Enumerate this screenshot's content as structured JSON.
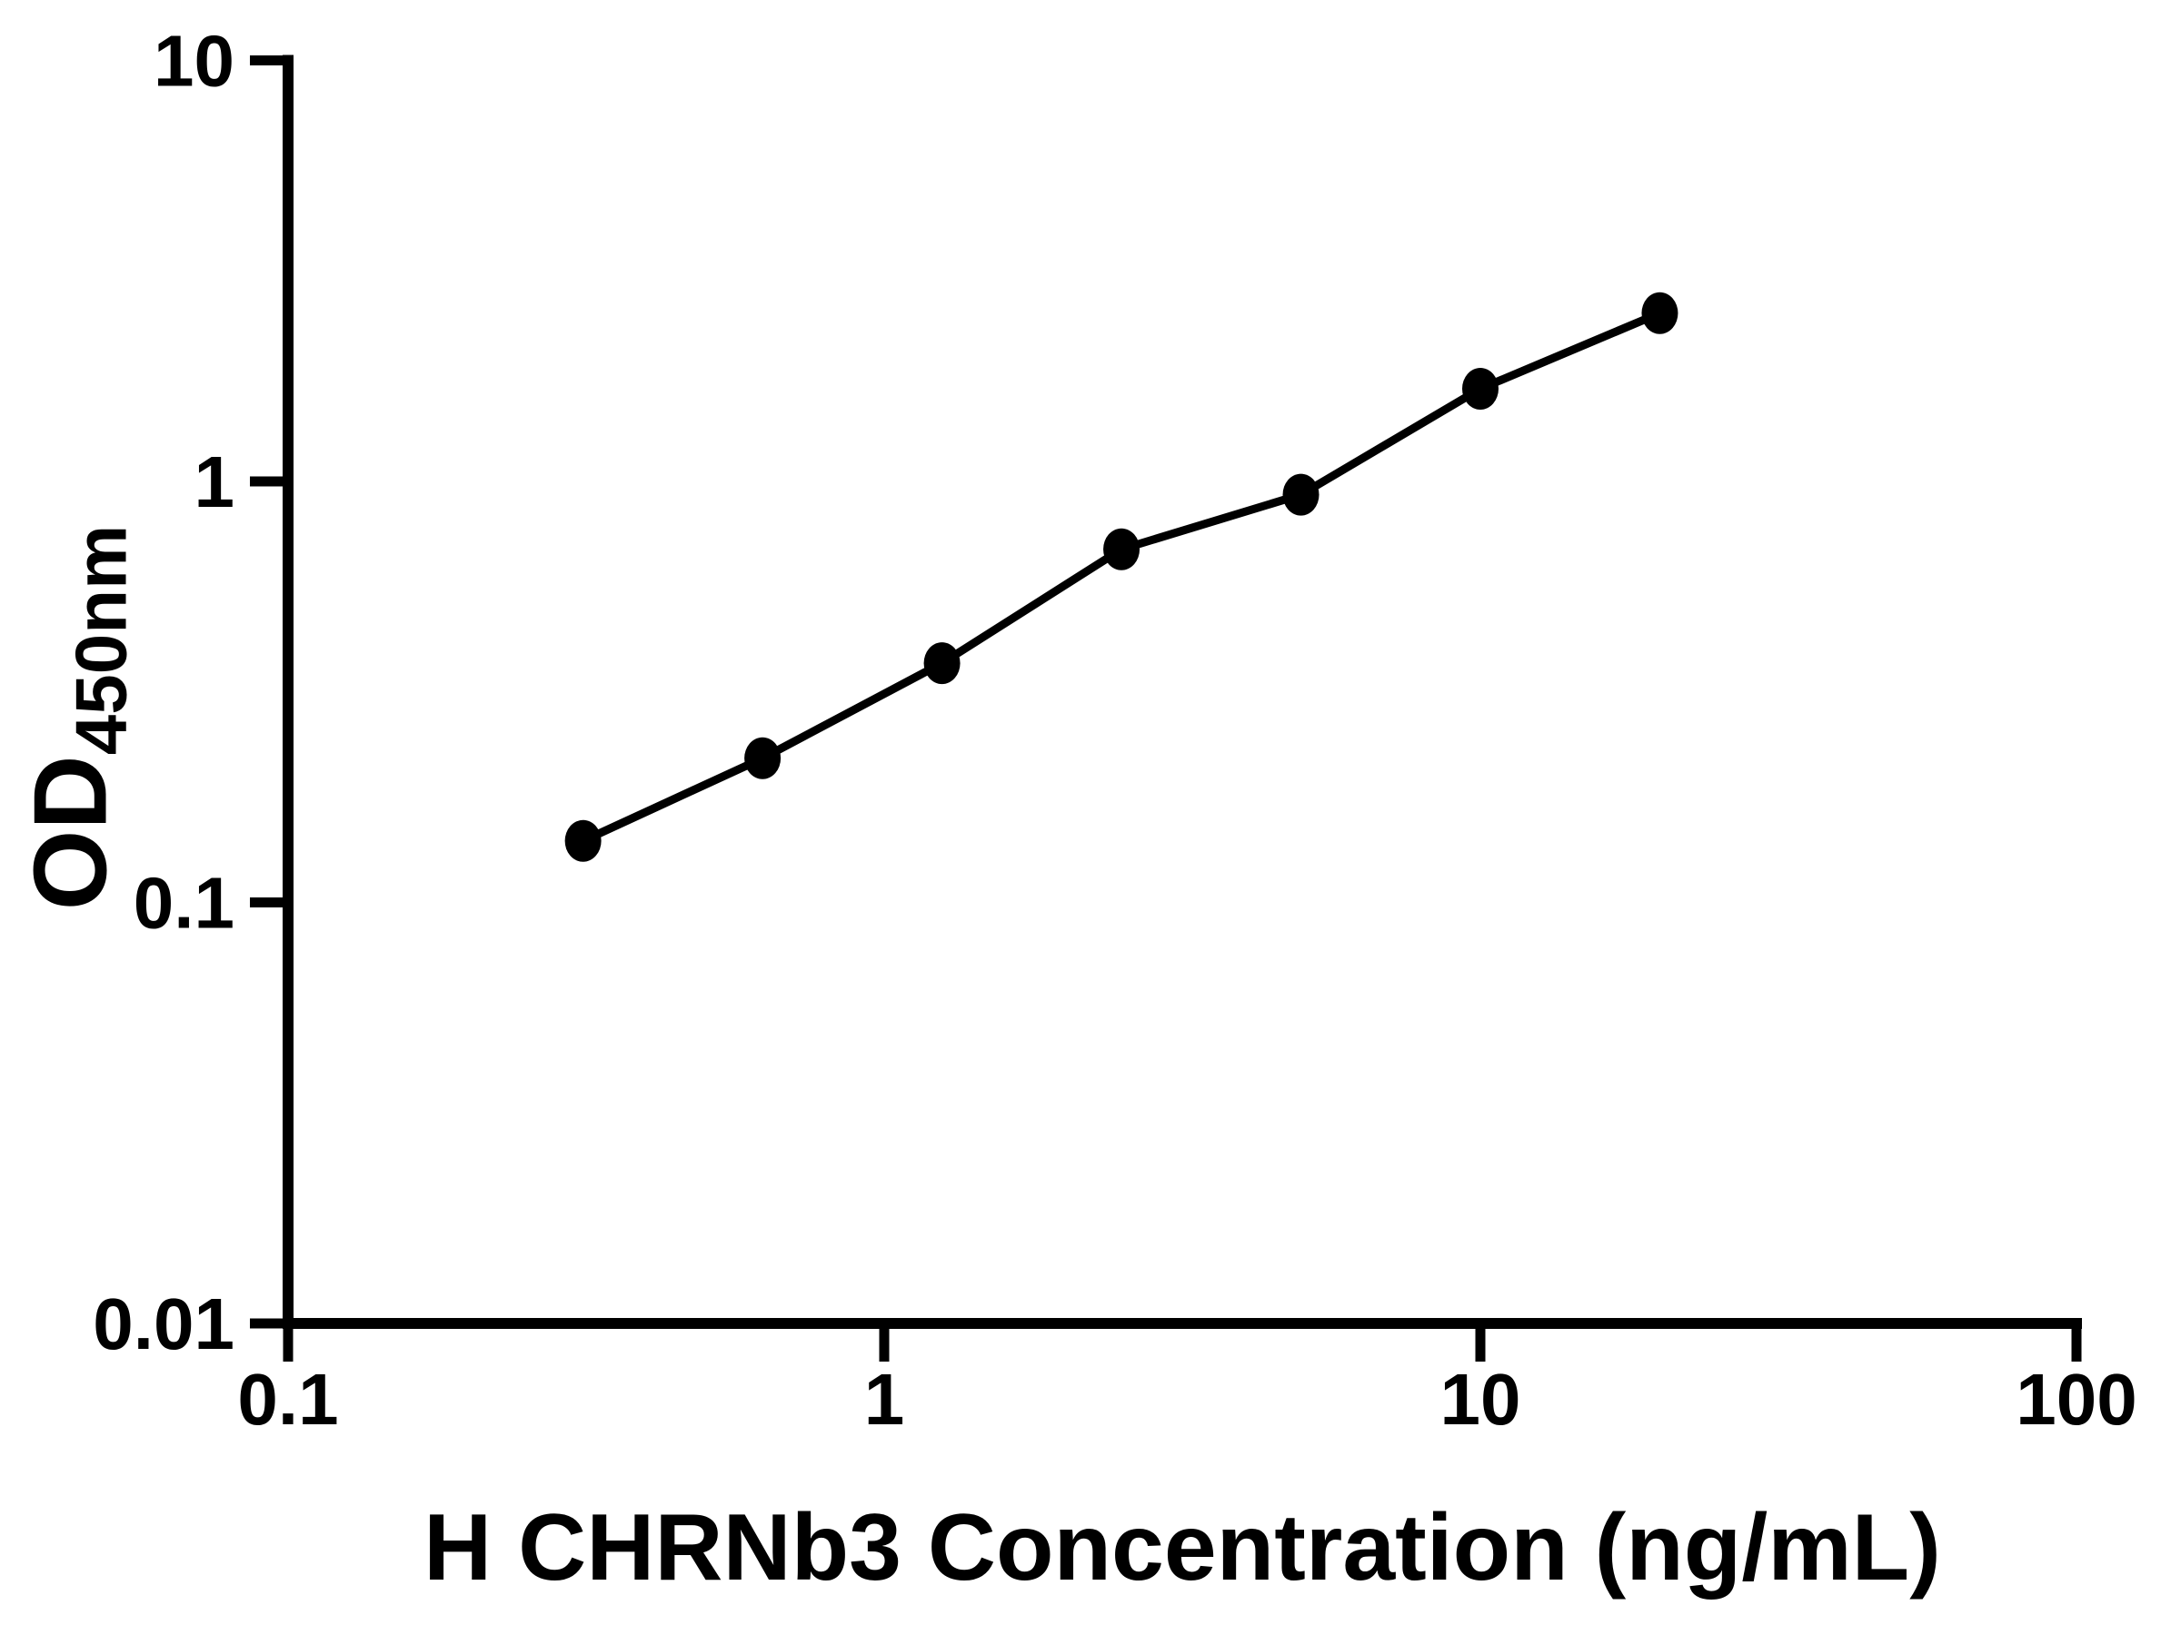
{
  "figure": {
    "background_color": "#ffffff",
    "foreground_color": "#000000"
  },
  "chart_data": {
    "type": "scatter",
    "subtype": "line-connected standard curve",
    "title": "",
    "xlabel": "H CHRNb3 Concentration (ng/mL)",
    "ylabel_main": "OD",
    "ylabel_subscript": "450nm",
    "x_scale": "log",
    "y_scale": "log",
    "xlim": [
      0.1,
      100
    ],
    "ylim": [
      0.01,
      10
    ],
    "x_ticks": [
      "0.1",
      "1",
      "10",
      "100"
    ],
    "y_ticks": [
      "0.01",
      "0.1",
      "1",
      "10"
    ],
    "grid": false,
    "legend": "none",
    "marker_color": "#000000",
    "line_color": "#000000",
    "points": [
      {
        "x": 0.3125,
        "y": 0.14
      },
      {
        "x": 0.625,
        "y": 0.22
      },
      {
        "x": 1.25,
        "y": 0.37
      },
      {
        "x": 2.5,
        "y": 0.69
      },
      {
        "x": 5,
        "y": 0.93
      },
      {
        "x": 10,
        "y": 1.66
      },
      {
        "x": 20,
        "y": 2.51
      }
    ]
  }
}
